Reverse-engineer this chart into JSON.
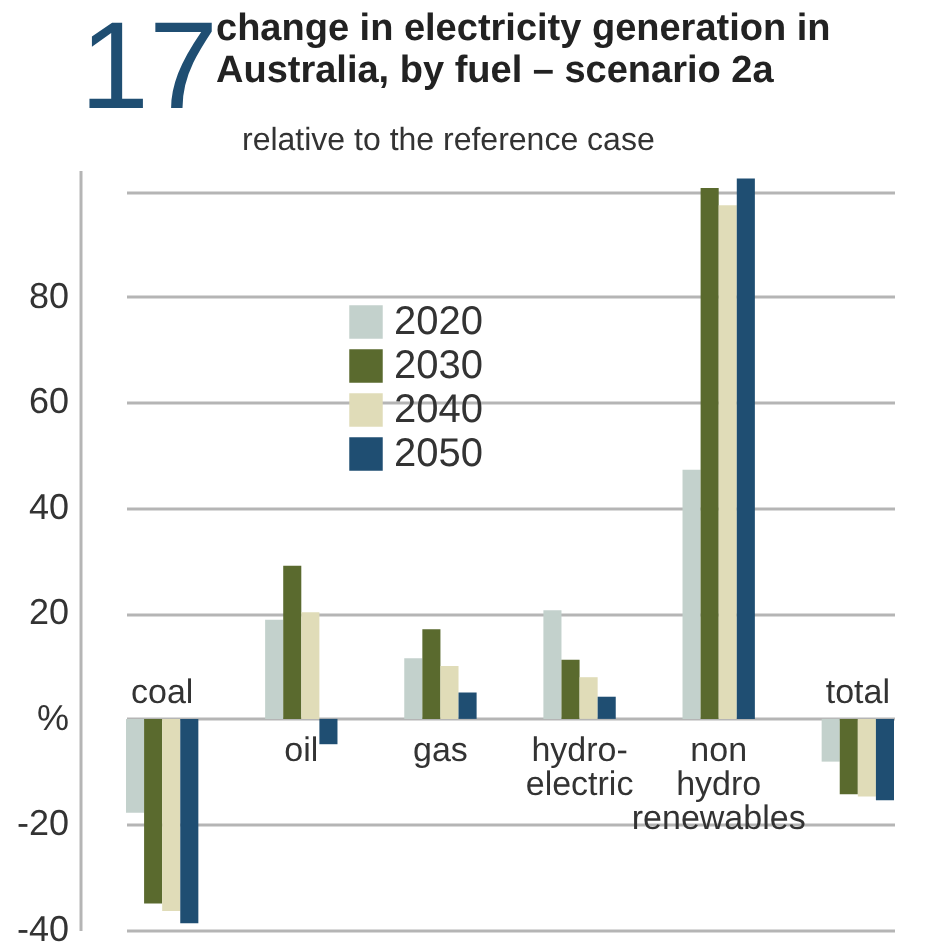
{
  "chart_data": {
    "type": "bar",
    "title": "change in electricity generation in\nAustralia, by fuel – scenario 2a",
    "subtitle": "relative to the reference case",
    "annotations": [
      "17"
    ],
    "categories": [
      "coal",
      "oil",
      "gas",
      "hydro-\nelectric",
      "non\nhydro\nrenewables",
      "total"
    ],
    "series": [
      {
        "name": "2020",
        "color": "#c3d1cc",
        "values": [
          -17.8,
          18.8,
          11.5,
          20.6,
          47.2,
          -8.1
        ]
      },
      {
        "name": "2030",
        "color": "#5a6a2e",
        "values": [
          -35,
          29,
          17,
          11.2,
          100.6,
          -14.3
        ]
      },
      {
        "name": "2040",
        "color": "#e0dcb8",
        "values": [
          -36.4,
          20.2,
          10,
          7.9,
          97.3,
          -14.7
        ]
      },
      {
        "name": "2050",
        "color": "#1f4e72",
        "values": [
          -38.7,
          -4.8,
          5,
          4.2,
          102.4,
          -15.4
        ]
      }
    ],
    "ylim": [
      -40,
      104
    ],
    "yticks": [
      -40,
      -20,
      {
        "value": 0,
        "label": "%"
      },
      20,
      40,
      60,
      80,
      {
        "value": 100,
        "label": null
      }
    ],
    "grid": "y",
    "legend": "top left"
  }
}
